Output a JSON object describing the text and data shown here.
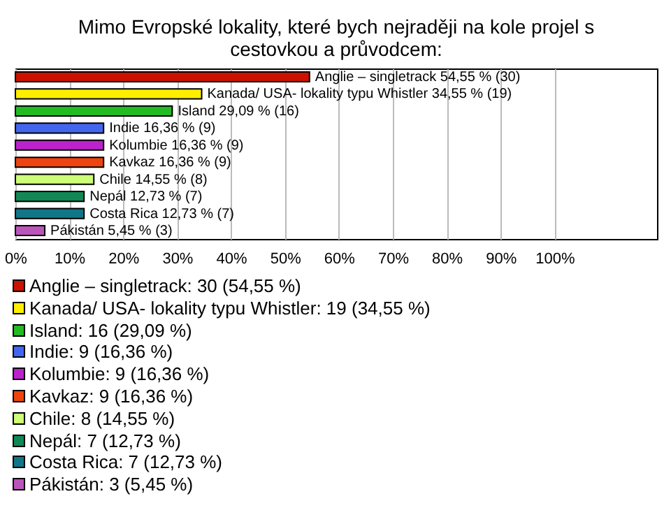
{
  "chart_data": {
    "type": "bar",
    "orientation": "horizontal",
    "title": "Mimo Evropské lokality, které bych nejraději na kole projel s cestovkou a průvodcem:",
    "categories": [
      "Anglie – singletrack",
      "Kanada/ USA- lokality typu Whistler",
      "Island",
      "Indie",
      "Kolumbie",
      "Kavkaz",
      "Chile",
      "Nepál",
      "Costa Rica",
      "Pákistán"
    ],
    "values": [
      54.55,
      34.55,
      29.09,
      16.36,
      16.36,
      16.36,
      14.55,
      12.73,
      12.73,
      5.45
    ],
    "value_labels": [
      "54,55 % (30)",
      "34,55 % (19)",
      "29,09 % (16)",
      "16,36 % (9)",
      "16,36 % (9)",
      "16,36 % (9)",
      "14,55 % (8)",
      "12,73 % (7)",
      "12,73 % (7)",
      "5,45 % (3)"
    ],
    "colors": [
      "#cc1100",
      "#ffee00",
      "#22bb22",
      "#4466ee",
      "#bb22cc",
      "#ee4411",
      "#ccff77",
      "#118855",
      "#117788",
      "#bb55bb"
    ],
    "xlim": [
      0,
      119
    ],
    "xticks": [
      {
        "value": 0,
        "label": "0%"
      },
      {
        "value": 10,
        "label": "10%"
      },
      {
        "value": 20,
        "label": "20%"
      },
      {
        "value": 30,
        "label": "30%"
      },
      {
        "value": 40,
        "label": "40%"
      },
      {
        "value": 50,
        "label": "50%"
      },
      {
        "value": 60,
        "label": "60%"
      },
      {
        "value": 70,
        "label": "70%"
      },
      {
        "value": 80,
        "label": "80%"
      },
      {
        "value": 90,
        "label": "90%"
      },
      {
        "value": 100,
        "label": "100%"
      }
    ],
    "annotations": [
      "Anglie – singletrack: 30 (54,55 %)",
      "Kanada/ USA- lokality typu Whistler: 19 (34,55 %)",
      "Island: 16 (29,09 %)",
      "Indie: 9 (16,36 %)",
      "Kolumbie: 9 (16,36 %)",
      "Kavkaz: 9 (16,36 %)",
      "Chile: 8 (14,55 %)",
      "Nepál: 7 (12,73 %)",
      "Costa Rica: 7 (12,73 %)",
      "Pákistán: 3 (5,45 %)"
    ],
    "grid": "x",
    "tick_labels": "x"
  }
}
